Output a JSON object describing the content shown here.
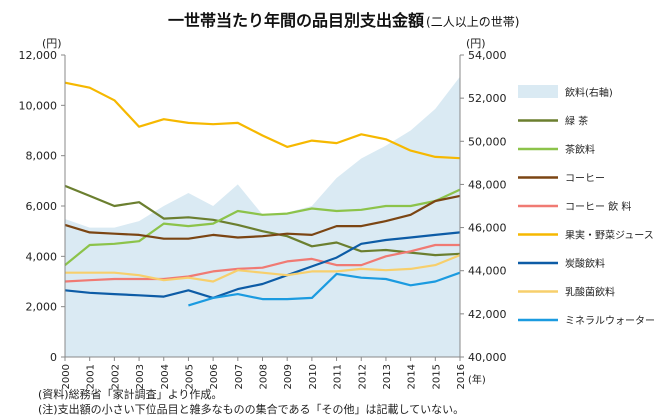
{
  "chart_data": {
    "type": "line",
    "title": "一世帯当たり年間の品目別支出金額",
    "subtitle": "(二人以上の世帯)",
    "left_axis_unit": "(円)",
    "right_axis_unit": "(円)",
    "x_unit": "(年)",
    "x": [
      "2000",
      "2001",
      "2002",
      "2003",
      "2004",
      "2005",
      "2006",
      "2007",
      "2008",
      "2009",
      "2010",
      "2011",
      "2012",
      "2013",
      "2014",
      "2015",
      "2016"
    ],
    "ylim_left": [
      0,
      12000
    ],
    "ylim_right": [
      40000,
      54000
    ],
    "left_ticks": [
      "0",
      "2,000",
      "4,000",
      "6,000",
      "8,000",
      "10,000",
      "12,000"
    ],
    "right_ticks": [
      "40,000",
      "42,000",
      "44,000",
      "46,000",
      "48,000",
      "50,000",
      "52,000",
      "54,000"
    ],
    "grid": false,
    "legend_position": "right",
    "area_series": {
      "name": "飲料(右軸)",
      "axis": "right",
      "color": "#daeaf3",
      "values": [
        46400,
        46000,
        46000,
        46300,
        47000,
        47600,
        47000,
        48000,
        46600,
        46700,
        47000,
        48300,
        49200,
        49800,
        50500,
        51500,
        53000
      ]
    },
    "series": [
      {
        "name": "緑 茶",
        "color": "#6b7f2f",
        "values": [
          6800,
          6400,
          6000,
          6150,
          5500,
          5550,
          5450,
          5250,
          5000,
          4800,
          4400,
          4550,
          4200,
          4250,
          4150,
          4050,
          4100
        ]
      },
      {
        "name": "茶飲料",
        "color": "#8cc34a",
        "values": [
          3650,
          4450,
          4500,
          4600,
          5300,
          5200,
          5300,
          5800,
          5650,
          5700,
          5900,
          5800,
          5850,
          6000,
          6000,
          6200,
          6650
        ]
      },
      {
        "name": "コーヒー",
        "color": "#7b4513",
        "values": [
          5250,
          4950,
          4900,
          4850,
          4700,
          4700,
          4850,
          4750,
          4800,
          4900,
          4850,
          5200,
          5200,
          5400,
          5650,
          6200,
          6400
        ]
      },
      {
        "name": "コーヒー 飲 料",
        "color": "#f07a73",
        "values": [
          3000,
          3050,
          3100,
          3100,
          3100,
          3200,
          3400,
          3500,
          3550,
          3800,
          3900,
          3650,
          3650,
          4000,
          4200,
          4450,
          4450
        ]
      },
      {
        "name": "果実・野菜ジュース",
        "color": "#f6b800",
        "values": [
          10900,
          10700,
          10200,
          9150,
          9450,
          9300,
          9250,
          9300,
          8800,
          8350,
          8600,
          8500,
          8850,
          8650,
          8200,
          7950,
          7900
        ]
      },
      {
        "name": "炭酸飲料",
        "color": "#0d5ca6",
        "values": [
          2650,
          2550,
          2500,
          2450,
          2400,
          2650,
          2350,
          2700,
          2900,
          3250,
          3600,
          3950,
          4500,
          4650,
          4750,
          4850,
          4950
        ]
      },
      {
        "name": "乳酸菌飲料",
        "color": "#f7cf6c",
        "values": [
          3350,
          3350,
          3350,
          3250,
          3050,
          3150,
          3000,
          3450,
          3350,
          3250,
          3400,
          3400,
          3500,
          3450,
          3500,
          3650,
          4050
        ]
      },
      {
        "name": "ミネラルウォーター",
        "color": "#1b9be0",
        "values": [
          null,
          null,
          null,
          null,
          null,
          2050,
          2350,
          2500,
          2300,
          2300,
          2350,
          3300,
          3150,
          3100,
          2850,
          3000,
          3350
        ]
      }
    ]
  },
  "notes": {
    "source": "(資料)総務省「家計調査」より作成。",
    "note": "(注)支出額の小さい下位品目と雑多なものの集合である「その他」は記載していない。"
  }
}
